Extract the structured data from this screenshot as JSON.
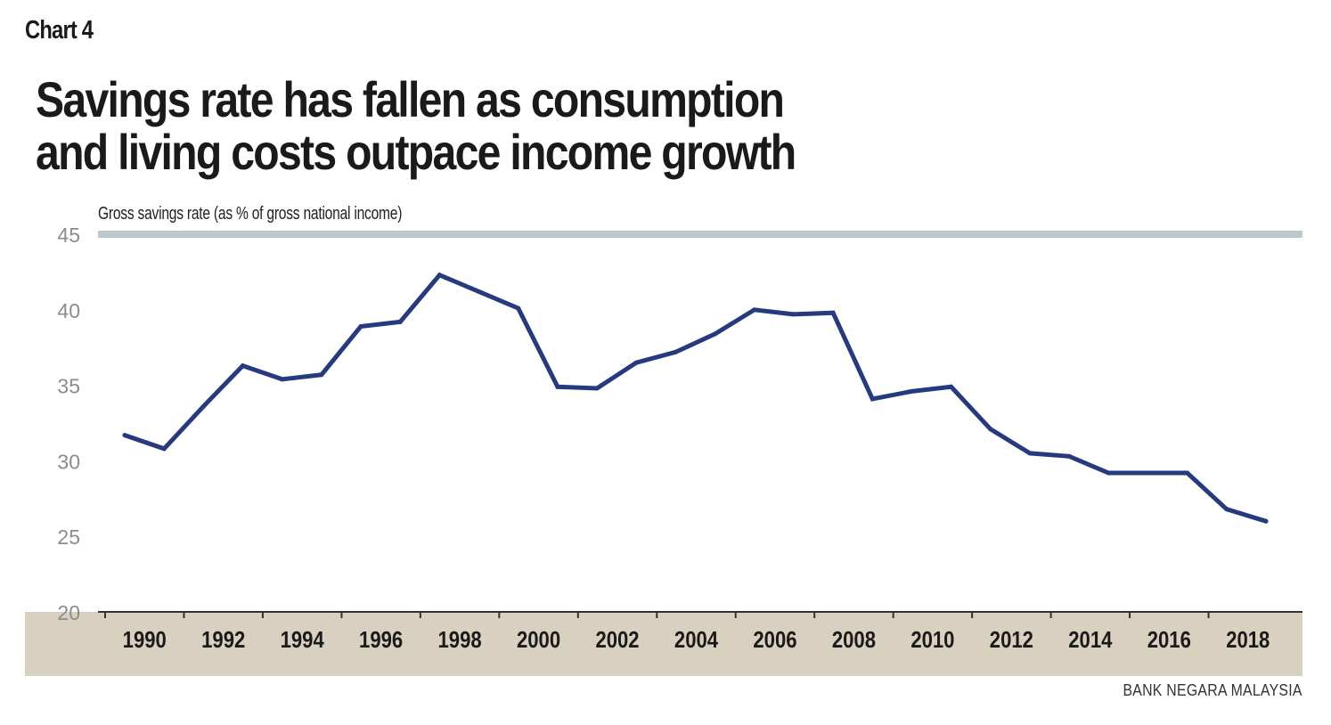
{
  "header": {
    "chart_label": "Chart 4",
    "title_line1": "Savings rate has fallen as consumption",
    "title_line2": "and living costs outpace income growth"
  },
  "source": "BANK NEGARA MALAYSIA",
  "colors": {
    "line": "#263a80",
    "top_rule": "#bcc8cc",
    "axis_band": "#d9d1c0",
    "axis_line": "#333333"
  },
  "chart_data": {
    "type": "line",
    "title": "Savings rate has fallen as consumption and living costs outpace income growth",
    "ylabel": "Gross savings rate (as % of gross national income)",
    "xlabel": "",
    "ylim": [
      20,
      45
    ],
    "yticks": [
      20,
      25,
      30,
      35,
      40,
      45
    ],
    "xticks": [
      "1990",
      "1992",
      "1994",
      "1996",
      "1998",
      "2000",
      "2002",
      "2004",
      "2006",
      "2008",
      "2010",
      "2012",
      "2014",
      "2016",
      "2018"
    ],
    "grid": false,
    "legend": "none",
    "series": [
      {
        "name": "Gross savings rate",
        "x": [
          1990,
          1991,
          1992,
          1993,
          1994,
          1995,
          1996,
          1997,
          1998,
          1999,
          2000,
          2001,
          2002,
          2003,
          2004,
          2005,
          2006,
          2007,
          2008,
          2009,
          2010,
          2011,
          2012,
          2013,
          2014,
          2015,
          2016,
          2017,
          2018,
          2019
        ],
        "values": [
          31.7,
          30.8,
          33.6,
          36.3,
          35.4,
          35.7,
          38.9,
          39.2,
          42.3,
          41.2,
          40.1,
          34.9,
          34.8,
          36.5,
          37.2,
          38.4,
          40.0,
          39.7,
          39.8,
          34.1,
          34.6,
          34.9,
          32.1,
          30.5,
          30.3,
          29.2,
          29.2,
          29.2,
          26.8,
          26.0
        ]
      }
    ]
  }
}
